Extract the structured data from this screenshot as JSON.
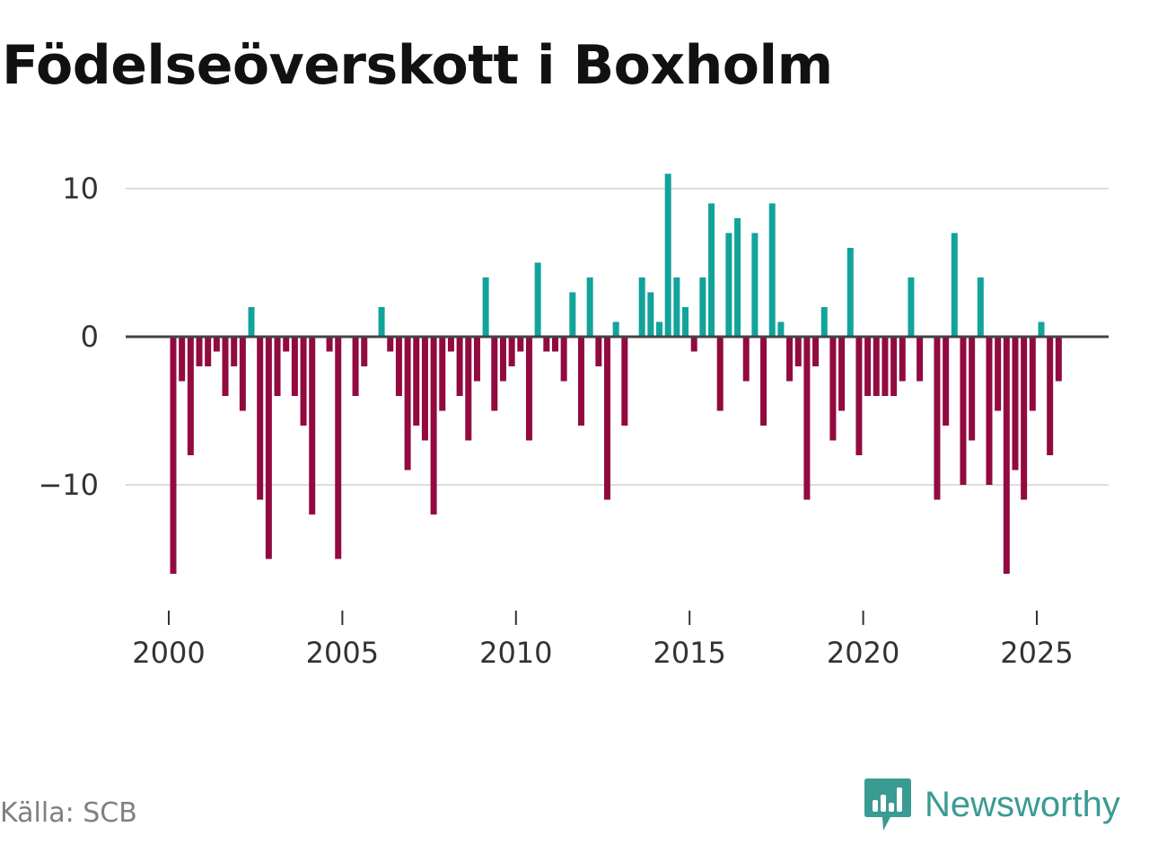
{
  "chart_data": {
    "type": "bar",
    "title": "Födelseöverskott i Boxholm",
    "xlabel": "",
    "ylabel": "",
    "ylim": [
      -17,
      11.5
    ],
    "yticks": [
      10,
      0,
      -10
    ],
    "ytick_labels": [
      "10",
      "0",
      "−10"
    ],
    "xticks": [
      2000,
      2005,
      2010,
      2015,
      2020,
      2025
    ],
    "xtick_labels": [
      "2000",
      "2005",
      "2010",
      "2015",
      "2020",
      "2025"
    ],
    "x_start": 2000.0,
    "x_step": 0.25,
    "x_unit": "quarter",
    "values": [
      -16,
      -3,
      -8,
      -2,
      -2,
      -1,
      -4,
      -2,
      -5,
      2,
      -11,
      -15,
      -4,
      -1,
      -4,
      -6,
      -12,
      0,
      -1,
      -15,
      0,
      -4,
      -2,
      0,
      2,
      -1,
      -4,
      -9,
      -6,
      -7,
      -12,
      -5,
      -1,
      -4,
      -7,
      -3,
      4,
      -5,
      -3,
      -2,
      -1,
      -7,
      5,
      -1,
      -1,
      -3,
      3,
      -6,
      4,
      -2,
      -11,
      1,
      -6,
      0,
      4,
      3,
      1,
      11,
      4,
      2,
      -1,
      4,
      9,
      -5,
      7,
      8,
      -3,
      7,
      -6,
      9,
      1,
      -3,
      -2,
      -11,
      -2,
      2,
      -7,
      -5,
      6,
      -8,
      -4,
      -4,
      -4,
      -4,
      -3,
      4,
      -3,
      0,
      -11,
      -6,
      7,
      -10,
      -7,
      4,
      -10,
      -5,
      -16,
      -9,
      -11,
      -5,
      1,
      -8,
      -3
    ],
    "positive_color": "#12a39b",
    "negative_color": "#920a3f",
    "grid": true
  },
  "footer": {
    "source": "Källa: SCB",
    "brand": "Newsworthy"
  }
}
